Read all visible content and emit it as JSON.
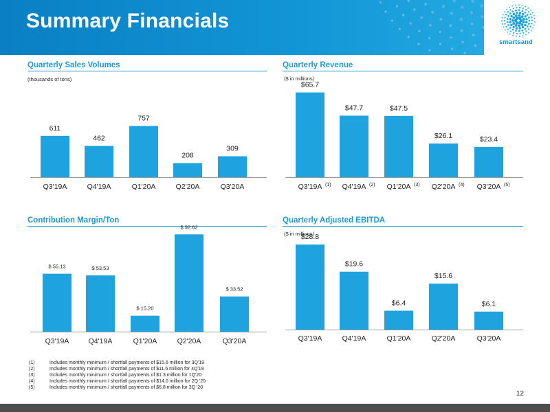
{
  "slide": {
    "title": "Summary Financials",
    "logo_text": "smartsand",
    "page_number": "12"
  },
  "colors": {
    "accent": "#1a9ad8",
    "bar": "#1fa3df",
    "header": "#0a7fc4"
  },
  "chart_data": [
    {
      "type": "bar",
      "title": "Quarterly Sales Volumes",
      "note": "(thousands of tons)",
      "categories": [
        "Q3'19A",
        "Q4'19A",
        "Q1'20A",
        "Q2'20A",
        "Q3'20A"
      ],
      "category_sups": [
        "",
        "",
        "",
        "",
        ""
      ],
      "values": [
        611,
        462,
        757,
        208,
        309
      ],
      "value_labels": [
        "611",
        "462",
        "757",
        "208",
        "309"
      ]
    },
    {
      "type": "bar",
      "title": "Quarterly Revenue",
      "note": "($ in millions)",
      "categories": [
        "Q3'19A",
        "Q4'19A",
        "Q1'20A",
        "Q2'20A",
        "Q3'20A"
      ],
      "category_sups": [
        "(1)",
        "(2)",
        "(3)",
        "(4)",
        "(5)"
      ],
      "values": [
        65.7,
        47.7,
        47.5,
        26.1,
        23.4
      ],
      "value_labels": [
        "$65.7",
        "$47.7",
        "$47.5",
        "$26.1",
        "$23.4"
      ]
    },
    {
      "type": "bar",
      "title": "Contribution Margin/Ton",
      "note": "",
      "categories": [
        "Q3'19A",
        "Q4'19A",
        "Q1'20A",
        "Q2'20A",
        "Q3'20A"
      ],
      "category_sups": [
        "",
        "",
        "",
        "",
        ""
      ],
      "values": [
        55.13,
        53.53,
        15.2,
        92.62,
        33.52
      ],
      "value_labels": [
        "$ 55.13",
        "$ 53.53",
        "$ 15.20",
        "$ 92.62",
        "$ 33.52"
      ]
    },
    {
      "type": "bar",
      "title": "Quarterly Adjusted EBITDA",
      "note": "($ in millions)",
      "categories": [
        "Q3'19A",
        "Q4'19A",
        "Q1'20A",
        "Q2'20A",
        "Q3'20A"
      ],
      "category_sups": [
        "",
        "",
        "",
        "",
        ""
      ],
      "values": [
        28.8,
        19.6,
        6.4,
        15.6,
        6.1
      ],
      "value_labels": [
        "$28.8",
        "$19.6",
        "$6.4",
        "$15.6",
        "$6.1"
      ]
    }
  ],
  "footnotes": [
    {
      "num": "(1)",
      "text": "Includes monthly minimum / shortfall payments of $15.6 million for 3Q'19"
    },
    {
      "num": "(2)",
      "text": "Includes monthly minimum / shortfall payments of $11.6 million for 4Q'19"
    },
    {
      "num": "(3)",
      "text": "Includes monthly minimum / shortfall payments of $1.3 million for 1Q'20"
    },
    {
      "num": "(4)",
      "text": "Includes monthly minimum / shortfall payments of $14.0 million for 2Q '20"
    },
    {
      "num": "(5)",
      "text": "Includes monthly minimum / shortfall payments of $6.8 million for 3Q '20"
    }
  ]
}
